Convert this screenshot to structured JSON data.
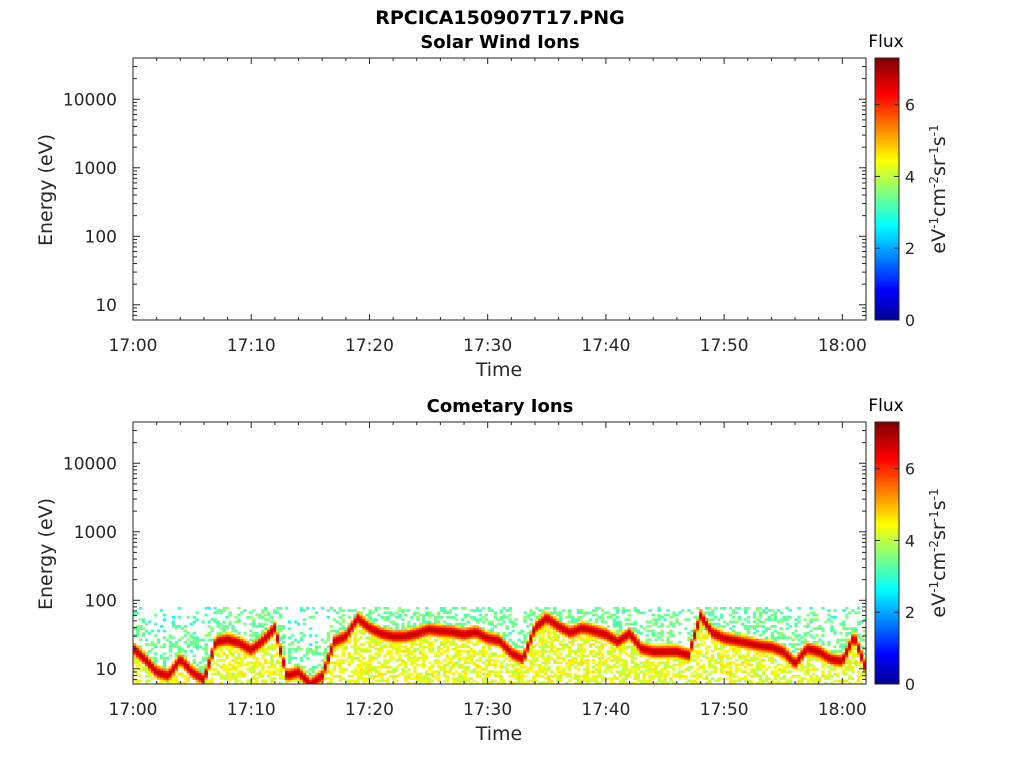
{
  "figure": {
    "title": "RPCICA150907T17.PNG"
  },
  "chart_data": [
    {
      "type": "heatmap",
      "title": "Solar Wind Ions",
      "xlabel": "Time",
      "ylabel": "Energy (eV)",
      "x_ticks": [
        "17:00",
        "17:10",
        "17:20",
        "17:30",
        "17:40",
        "17:50",
        "18:00"
      ],
      "x_range": [
        "17:00",
        "18:02"
      ],
      "y_scale": "log",
      "y_ticks": [
        "10",
        "100",
        "1000",
        "10000"
      ],
      "y_range": [
        6,
        40000
      ],
      "colorbar": {
        "label": "Flux",
        "units": "eV-1cm-2sr-1s-1",
        "ticks": [
          "0",
          "2",
          "4",
          "6"
        ],
        "range": [
          0,
          7.3
        ],
        "colormap": "jet"
      },
      "grid": false,
      "data": []
    },
    {
      "type": "heatmap",
      "title": "Cometary Ions",
      "xlabel": "Time",
      "ylabel": "Energy (eV)",
      "x_ticks": [
        "17:00",
        "17:10",
        "17:20",
        "17:30",
        "17:40",
        "17:50",
        "18:00"
      ],
      "x_range": [
        "17:00",
        "18:02"
      ],
      "y_scale": "log",
      "y_ticks": [
        "10",
        "100",
        "1000",
        "10000"
      ],
      "y_range": [
        6,
        40000
      ],
      "colorbar": {
        "label": "Flux",
        "units": "eV-1cm-2sr-1s-1",
        "ticks": [
          "0",
          "2",
          "4",
          "6"
        ],
        "range": [
          0,
          7.3
        ],
        "colormap": "jet"
      },
      "grid": false,
      "peak_energy_trace": {
        "time_min": [
          0,
          1,
          2,
          3,
          4,
          5,
          6,
          7,
          8,
          9,
          10,
          11,
          12,
          13,
          14,
          15,
          16,
          17,
          18,
          19,
          20,
          21,
          22,
          23,
          24,
          25,
          26,
          27,
          28,
          29,
          30,
          31,
          32,
          33,
          34,
          35,
          36,
          37,
          38,
          39,
          40,
          41,
          42,
          43,
          44,
          45,
          46,
          47,
          48,
          49,
          50,
          51,
          52,
          53,
          54,
          55,
          56,
          57,
          58,
          59,
          60,
          61,
          62
        ],
        "energy_eV": [
          20,
          14,
          9,
          8,
          14,
          9,
          7,
          25,
          27,
          24,
          19,
          26,
          40,
          8,
          9,
          6,
          8,
          25,
          30,
          55,
          40,
          33,
          30,
          30,
          33,
          38,
          36,
          35,
          32,
          35,
          28,
          26,
          17,
          14,
          40,
          56,
          42,
          34,
          40,
          36,
          32,
          25,
          33,
          20,
          18,
          18,
          18,
          16,
          60,
          34,
          28,
          26,
          24,
          22,
          21,
          18,
          12,
          20,
          18,
          14,
          13,
          30,
          10
        ],
        "peak_flux": 6.8
      },
      "background": {
        "upper_energy_eV": 80,
        "noise_flux": 3.2,
        "low_energy_flux": 4.0
      }
    }
  ]
}
